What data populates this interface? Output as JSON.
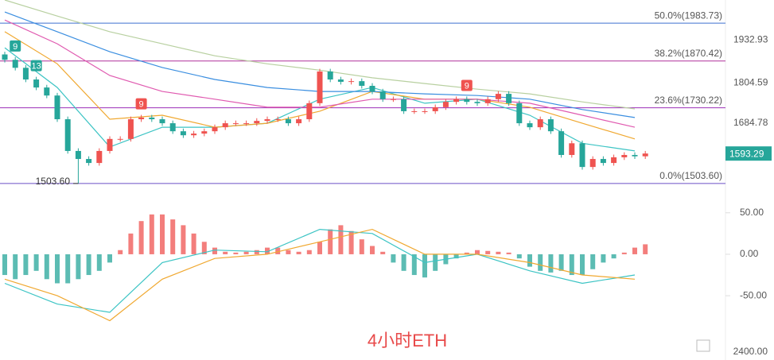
{
  "chart_data": {
    "type": "candlestick",
    "watermark": "4小时ETH",
    "bottom_label": "2400.00",
    "ylim": [
      1470,
      2053
    ],
    "yticks": [
      1932.93,
      1804.59,
      1684.78
    ],
    "last_price": 1593.29,
    "last_price_color": "#26a69a",
    "up_color": "#ef5350",
    "down_color": "#26a69a",
    "low_label": {
      "value": 1503.6,
      "label": "1503.60"
    },
    "fib_levels": [
      {
        "value": 1983.73,
        "label": "50.0%(1983.73)",
        "color": "#3f6fd0"
      },
      {
        "value": 1870.42,
        "label": "38.2%(1870.42)",
        "color": "#b0309c"
      },
      {
        "value": 1730.22,
        "label": "23.6%(1730.22)",
        "color": "#9c2fb8"
      },
      {
        "value": 1503.6,
        "label": "0.0%(1503.60)",
        "color": "#6b4fc8"
      }
    ],
    "markers": [
      {
        "index": 1,
        "label": "9",
        "color": "#26a69a"
      },
      {
        "index": 3,
        "label": "13",
        "color": "#26a69a"
      },
      {
        "index": 13,
        "label": "9",
        "color": "#ef5350"
      },
      {
        "index": 44,
        "label": "9",
        "color": "#ef5350"
      }
    ],
    "open": [
      1890,
      1874,
      1850,
      1815,
      1791,
      1767,
      1696,
      1601,
      1577,
      1565,
      1601,
      1637,
      1637,
      1696,
      1701,
      1696,
      1684,
      1660,
      1648,
      1653,
      1660,
      1672,
      1684,
      1684,
      1684,
      1691,
      1696,
      1696,
      1684,
      1696,
      1744,
      1839,
      1815,
      1808,
      1810,
      1796,
      1779,
      1756,
      1756,
      1720,
      1720,
      1720,
      1732,
      1748,
      1756,
      1748,
      1744,
      1756,
      1772,
      1744,
      1684,
      1672,
      1696,
      1660,
      1589,
      1624,
      1553,
      1577,
      1565,
      1582,
      1589,
      1585
    ],
    "high": [
      1898,
      1882,
      1858,
      1823,
      1799,
      1775,
      1704,
      1609,
      1585,
      1609,
      1645,
      1645,
      1704,
      1709,
      1709,
      1704,
      1692,
      1668,
      1661,
      1668,
      1680,
      1692,
      1692,
      1692,
      1699,
      1704,
      1704,
      1704,
      1704,
      1752,
      1847,
      1847,
      1823,
      1818,
      1818,
      1804,
      1787,
      1764,
      1764,
      1728,
      1728,
      1740,
      1756,
      1764,
      1764,
      1756,
      1764,
      1780,
      1780,
      1752,
      1692,
      1704,
      1704,
      1668,
      1632,
      1632,
      1585,
      1585,
      1590,
      1597,
      1597,
      1601
    ],
    "low": [
      1866,
      1842,
      1807,
      1783,
      1759,
      1688,
      1593,
      1503.6,
      1557,
      1557,
      1593,
      1629,
      1629,
      1688,
      1688,
      1676,
      1652,
      1640,
      1640,
      1645,
      1652,
      1664,
      1676,
      1676,
      1676,
      1683,
      1688,
      1676,
      1676,
      1688,
      1736,
      1807,
      1800,
      1800,
      1788,
      1771,
      1748,
      1748,
      1712,
      1712,
      1712,
      1712,
      1724,
      1740,
      1740,
      1736,
      1736,
      1748,
      1736,
      1676,
      1664,
      1664,
      1652,
      1581,
      1581,
      1545,
      1545,
      1557,
      1557,
      1574,
      1577,
      1577
    ],
    "close": [
      1874,
      1850,
      1815,
      1791,
      1767,
      1696,
      1601,
      1577,
      1565,
      1601,
      1637,
      1637,
      1696,
      1701,
      1696,
      1684,
      1660,
      1648,
      1653,
      1660,
      1672,
      1684,
      1684,
      1684,
      1691,
      1696,
      1696,
      1684,
      1696,
      1744,
      1839,
      1815,
      1808,
      1810,
      1796,
      1779,
      1756,
      1756,
      1720,
      1720,
      1720,
      1732,
      1748,
      1756,
      1748,
      1744,
      1756,
      1772,
      1744,
      1684,
      1672,
      1696,
      1660,
      1589,
      1624,
      1553,
      1577,
      1565,
      1582,
      1589,
      1585,
      1593.29
    ],
    "series": [
      {
        "color": "#3cc4c4",
        "values": [
          1910,
          1791,
          1613,
          1672,
          1672,
          1684,
          1756,
          1791,
          1744,
          1756,
          1708,
          1624,
          1601
        ]
      },
      {
        "color": "#f0a830",
        "values": [
          1958,
          1862,
          1696,
          1708,
          1672,
          1684,
          1720,
          1779,
          1756,
          1756,
          1732,
          1684,
          1637
        ]
      },
      {
        "color": "#e05ab0",
        "values": [
          1993,
          1922,
          1827,
          1779,
          1756,
          1732,
          1732,
          1756,
          1756,
          1756,
          1744,
          1708,
          1672
        ]
      },
      {
        "color": "#3a8ee0",
        "values": [
          2017,
          1958,
          1898,
          1851,
          1815,
          1791,
          1779,
          1779,
          1772,
          1767,
          1756,
          1725,
          1701
        ]
      },
      {
        "color": "#b8d0a0",
        "values": [
          2053,
          2005,
          1958,
          1922,
          1886,
          1862,
          1843,
          1820,
          1803,
          1786,
          1772,
          1748,
          1727
        ]
      }
    ],
    "macd": {
      "ylim": [
        -115,
        67
      ],
      "yticks": [
        {
          "value": 50,
          "label": "50.00"
        },
        {
          "value": 0,
          "label": "0.00"
        },
        {
          "value": -50,
          "label": "-50.00"
        }
      ],
      "histogram": [
        -25,
        -30,
        -25,
        -20,
        -30,
        -35,
        -35,
        -30,
        -25,
        -20,
        -10,
        5,
        25,
        40,
        48,
        48,
        42,
        35,
        25,
        15,
        8,
        3,
        2,
        3,
        5,
        8,
        8,
        5,
        3,
        5,
        15,
        30,
        35,
        28,
        18,
        10,
        3,
        -10,
        -20,
        -25,
        -28,
        -20,
        -12,
        -5,
        2,
        5,
        4,
        3,
        2,
        -5,
        -15,
        -20,
        -22,
        -20,
        -25,
        -25,
        -18,
        -10,
        -5,
        2,
        8,
        12
      ],
      "series": [
        {
          "color": "#3cc4c4",
          "values": [
            -35,
            -60,
            -70,
            -10,
            5,
            3,
            30,
            25,
            -10,
            0,
            -20,
            -35,
            -25
          ]
        },
        {
          "color": "#f0a830",
          "values": [
            -30,
            -50,
            -80,
            -30,
            -5,
            0,
            15,
            30,
            0,
            0,
            -10,
            -25,
            -30
          ]
        }
      ]
    }
  }
}
